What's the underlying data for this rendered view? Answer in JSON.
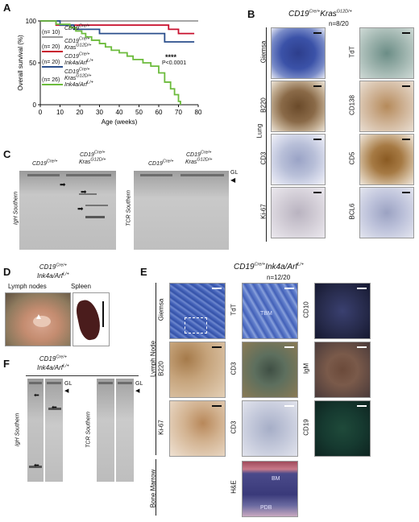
{
  "panels": {
    "A": "A",
    "B": "B",
    "C": "C",
    "D": "D",
    "E": "E",
    "F": "F"
  },
  "panelA": {
    "ylabel": "Overall survival (%)",
    "xlabel": "Age (weeks)",
    "pvalue_stars": "****",
    "pvalue": "P<0.0001",
    "legend": [
      {
        "n": "(n= 10)",
        "l1": "CD19Cre/+",
        "l2": "",
        "l3": "",
        "color": "#9a9a9a"
      },
      {
        "n": "(n= 20)",
        "l1": "CD19Cre/+",
        "l2": "KrasG12D/+",
        "l3": "",
        "color": "#c8102e"
      },
      {
        "n": "(n= 20)",
        "l1": "CD19Cre/+",
        "l2": "Ink4a/ArfL/+",
        "l3": "",
        "color": "#2b4f8c"
      },
      {
        "n": "(n= 26)",
        "l1": "CD19Cre/+",
        "l2": "KrasG12D/+",
        "l3": "Ink4a/ArfL/+",
        "color": "#6cbb3c"
      }
    ]
  },
  "chart_data": {
    "type": "line",
    "title": "",
    "xlabel": "Age (weeks)",
    "ylabel": "Overall survival (%)",
    "xlim": [
      0,
      80
    ],
    "ylim": [
      0,
      100
    ],
    "xticks": [
      0,
      10,
      20,
      30,
      40,
      50,
      60,
      70,
      80
    ],
    "yticks": [
      0,
      50,
      100
    ],
    "series": [
      {
        "name": "CD19Cre/+",
        "color": "#9a9a9a",
        "x": [
          0,
          80
        ],
        "y": [
          100,
          100
        ]
      },
      {
        "name": "CD19Cre/+ KrasG12D/+",
        "color": "#c8102e",
        "x": [
          0,
          8,
          8,
          65,
          65,
          70,
          70,
          78
        ],
        "y": [
          100,
          100,
          95,
          95,
          90,
          90,
          85,
          85
        ]
      },
      {
        "name": "CD19Cre/+ Ink4a/ArfL/+",
        "color": "#2b4f8c",
        "x": [
          0,
          10,
          10,
          17,
          17,
          30,
          30,
          63,
          63,
          78
        ],
        "y": [
          100,
          100,
          95,
          95,
          90,
          90,
          85,
          85,
          75,
          75
        ]
      },
      {
        "name": "CD19Cre/+ KrasG12D/+ Ink4a/ArfL/+",
        "color": "#6cbb3c",
        "x": [
          0,
          8,
          8,
          15,
          15,
          18,
          18,
          21,
          21,
          23,
          23,
          26,
          26,
          30,
          30,
          33,
          33,
          36,
          36,
          40,
          40,
          44,
          44,
          47,
          47,
          52,
          52,
          56,
          56,
          60,
          60,
          63,
          63,
          66,
          66,
          68,
          68,
          70,
          70,
          71,
          71
        ],
        "y": [
          100,
          100,
          96,
          96,
          92,
          92,
          88,
          88,
          85,
          85,
          81,
          81,
          77,
          77,
          73,
          73,
          69,
          69,
          65,
          65,
          62,
          62,
          58,
          58,
          54,
          54,
          50,
          50,
          46,
          46,
          38,
          38,
          27,
          27,
          19,
          19,
          12,
          12,
          4,
          4,
          0
        ]
      }
    ]
  },
  "panelB": {
    "title": "CD19Cre/+KrasG12D/+",
    "n": "n=8/20",
    "tissue": "Lung",
    "left": [
      "Giemsa",
      "B220",
      "CD3",
      "Ki-67"
    ],
    "right": [
      "TdT",
      "CD138",
      "CD5",
      "BCL6"
    ]
  },
  "panelC": {
    "left_genotype1": "CD19Cre/+",
    "left_genotype2a": "CD19Cre/+",
    "left_genotype2b": "KrasG12D/+",
    "right_genotype1": "CD19Cre/+",
    "right_genotype2a": "CD19Cre/+",
    "right_genotype2b": "KrasG12D/+",
    "left_label": "IgH Southern",
    "right_label": "TCR Southern",
    "gl": "GL"
  },
  "panelD": {
    "title1": "CD19Cre/+",
    "title2": "Ink4a/ArfL/+",
    "lymph": "Lymph nodes",
    "spleen": "Spleen"
  },
  "panelE": {
    "title": "CD19Cre/+Ink4a/ArfL/+",
    "n": "n=12/20",
    "lymph_node": "Lymph Node",
    "bone_marrow": "Bone Marrow",
    "col1": [
      "Giemsa",
      "B220",
      "Ki-67"
    ],
    "col2": [
      "TdT",
      "CD3",
      "H&E"
    ],
    "col3": [
      "CD10",
      "IgM",
      "CD19"
    ],
    "tbm": "TBM",
    "bm": "BM",
    "pdb": "PDB"
  },
  "panelF": {
    "title1": "CD19Cre/+",
    "title2": "Ink4a/ArfL/+",
    "left_label": "IgH Southern",
    "right_label": "TCR Southern",
    "gl1": "GL",
    "gl2": "GL"
  }
}
